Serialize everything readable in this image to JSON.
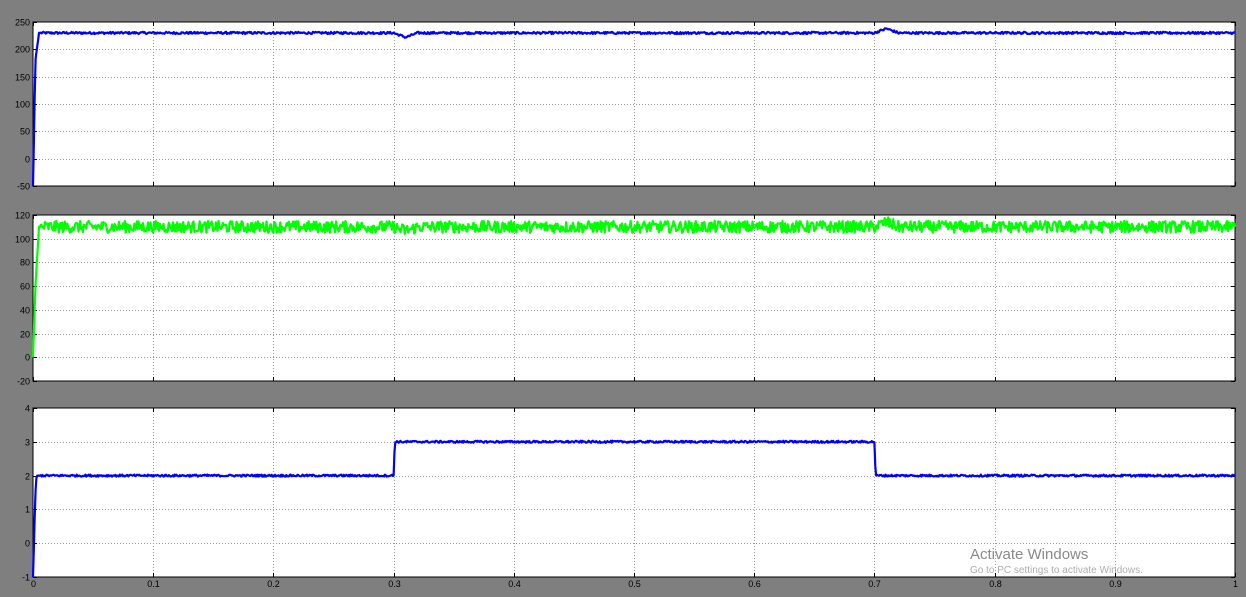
{
  "window": {
    "background": "#7f7f7f",
    "axes_background": "#ffffff",
    "grid_color": "#9a9a9a"
  },
  "chart_data": [
    {
      "type": "line",
      "title": "",
      "xlabel": "",
      "ylabel": "",
      "xlim": [
        0,
        1
      ],
      "ylim": [
        -50,
        250
      ],
      "xticks": [
        0,
        0.1,
        0.2,
        0.3,
        0.4,
        0.5,
        0.6,
        0.7,
        0.8,
        0.9,
        1
      ],
      "xtick_labels": [],
      "yticks": [
        -50,
        0,
        50,
        100,
        150,
        200,
        250
      ],
      "ytick_labels": [
        "-50",
        "0",
        "50",
        "100",
        "150",
        "200",
        "250"
      ],
      "grid": true,
      "series": [
        {
          "color": "#0000ff",
          "x": [
            0,
            0.002,
            0.005,
            0.3,
            0.305,
            0.31,
            0.315,
            0.32,
            0.7,
            0.705,
            0.71,
            0.715,
            0.72,
            1
          ],
          "y": [
            -50,
            180,
            230,
            230,
            226,
            222,
            226,
            230,
            230,
            234,
            238,
            234,
            230,
            230
          ],
          "noise": 2
        }
      ]
    },
    {
      "type": "line",
      "title": "",
      "xlabel": "",
      "ylabel": "",
      "xlim": [
        0,
        1
      ],
      "ylim": [
        -20,
        120
      ],
      "xticks": [
        0,
        0.1,
        0.2,
        0.3,
        0.4,
        0.5,
        0.6,
        0.7,
        0.8,
        0.9,
        1
      ],
      "xtick_labels": [],
      "yticks": [
        -20,
        0,
        20,
        40,
        60,
        80,
        100,
        120
      ],
      "ytick_labels": [
        "-20",
        "0",
        "20",
        "40",
        "60",
        "80",
        "100",
        "120"
      ],
      "grid": true,
      "series": [
        {
          "color": "#00ff00",
          "x": [
            0,
            0.002,
            0.005,
            0.3,
            0.305,
            0.31,
            0.315,
            0.32,
            0.7,
            0.705,
            0.71,
            0.715,
            0.72,
            1
          ],
          "y": [
            0,
            60,
            110,
            110,
            108,
            107,
            108,
            110,
            110,
            112,
            114,
            112,
            110,
            110
          ],
          "noise": 5
        }
      ]
    },
    {
      "type": "line",
      "title": "",
      "xlabel": "",
      "ylabel": "",
      "xlim": [
        0,
        1
      ],
      "ylim": [
        -1,
        4
      ],
      "xticks": [
        0,
        0.1,
        0.2,
        0.3,
        0.4,
        0.5,
        0.6,
        0.7,
        0.8,
        0.9,
        1
      ],
      "xtick_labels": [
        "0",
        "0.1",
        "0.2",
        "0.3",
        "0.4",
        "0.5",
        "0.6",
        "0.7",
        "0.8",
        "0.9",
        "1"
      ],
      "yticks": [
        -1,
        0,
        1,
        2,
        3,
        4
      ],
      "ytick_labels": [
        "-1",
        "0",
        "1",
        "2",
        "3",
        "4"
      ],
      "grid": true,
      "series": [
        {
          "color": "#0000ff",
          "x": [
            0,
            0.002,
            0.003,
            0.3,
            0.301,
            0.7,
            0.701,
            1
          ],
          "y": [
            -1,
            1.5,
            2,
            2,
            3,
            3,
            2,
            2
          ],
          "noise": 0.03
        }
      ]
    }
  ],
  "watermark": {
    "title": "Activate Windows",
    "subtitle": "Go to PC settings to activate Windows."
  }
}
